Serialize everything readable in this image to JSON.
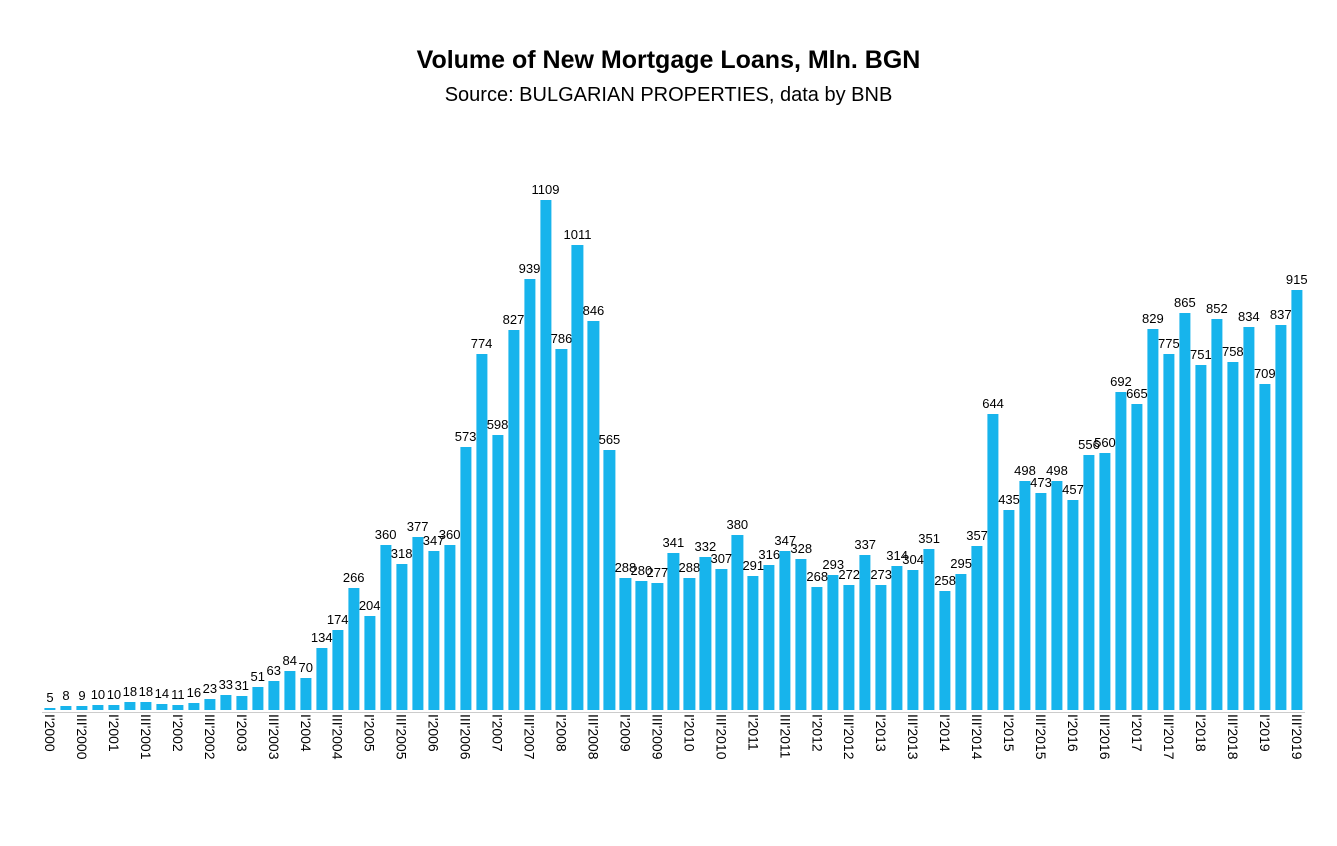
{
  "header": {
    "title": "Volume of New Mortgage Loans, Mln. BGN",
    "subtitle": "Source: BULGARIAN PROPERTIES, data by BNB"
  },
  "chart_data": {
    "type": "bar",
    "title": "Volume of New Mortgage Loans, Mln. BGN",
    "subtitle": "Source: BULGARIAN PROPERTIES, data by BNB",
    "xlabel": "",
    "ylabel": "",
    "ylim": [
      0,
      1110
    ],
    "grid": false,
    "legend": "none",
    "bar_color": "#17b4ec",
    "value_label_color": "#000000",
    "categories": [
      "I'2000",
      "II'2000",
      "III'2000",
      "IV'2000",
      "I'2001",
      "II'2001",
      "III'2001",
      "IV'2001",
      "I'2002",
      "II'2002",
      "III'2002",
      "IV'2002",
      "I'2003",
      "II'2003",
      "III'2003",
      "IV'2003",
      "I'2004",
      "II'2004",
      "III'2004",
      "IV'2004",
      "I'2005",
      "II'2005",
      "III'2005",
      "IV'2005",
      "I'2006",
      "II'2006",
      "III'2006",
      "IV'2006",
      "I'2007",
      "II'2007",
      "III'2007",
      "IV'2007",
      "I'2008",
      "II'2008",
      "III'2008",
      "IV'2008",
      "I'2009",
      "II'2009",
      "III'2009",
      "IV'2009",
      "I'2010",
      "II'2010",
      "III'2010",
      "IV'2010",
      "I'2011",
      "II'2011",
      "III'2011",
      "IV'2011",
      "I'2012",
      "II'2012",
      "III'2012",
      "IV'2012",
      "I'2013",
      "II'2013",
      "III'2013",
      "IV'2013",
      "I'2014",
      "II'2014",
      "III'2014",
      "IV'2014",
      "I'2015",
      "II'2015",
      "III'2015",
      "IV'2015",
      "I'2016",
      "II'2016",
      "III'2016",
      "IV'2016",
      "I'2017",
      "II'2017",
      "III'2017",
      "IV'2017",
      "I'2018",
      "II'2018",
      "III'2018",
      "IV'2018",
      "I'2019",
      "II'2019",
      "III'2019"
    ],
    "x_tick_labels": [
      "I'2000",
      "III'2000",
      "I'2001",
      "III'2001",
      "I'2002",
      "III'2002",
      "I'2003",
      "III'2003",
      "I'2004",
      "III'2004",
      "I'2005",
      "III'2005",
      "I'2006",
      "III'2006",
      "I'2007",
      "III'2007",
      "I'2008",
      "III'2008",
      "I'2009",
      "III'2009",
      "I'2010",
      "III'2010",
      "I'2011",
      "III'2011",
      "I'2012",
      "III'2012",
      "I'2013",
      "III'2013",
      "I'2014",
      "III'2014",
      "I'2015",
      "III'2015",
      "I'2016",
      "III'2016",
      "I'2017",
      "III'2017",
      "I'2018",
      "III'2018",
      "I'2019",
      "III'2019"
    ],
    "values": [
      5,
      8,
      9,
      10,
      10,
      18,
      18,
      14,
      11,
      16,
      23,
      33,
      31,
      51,
      63,
      84,
      70,
      134,
      174,
      266,
      204,
      360,
      318,
      377,
      347,
      360,
      573,
      774,
      598,
      827,
      939,
      1109,
      786,
      1011,
      846,
      565,
      288,
      280,
      277,
      341,
      288,
      332,
      307,
      380,
      291,
      316,
      347,
      328,
      268,
      293,
      272,
      337,
      273,
      314,
      304,
      351,
      258,
      295,
      357,
      644,
      435,
      498,
      473,
      498,
      457,
      556,
      560,
      692,
      665,
      829,
      775,
      865,
      751,
      852,
      758,
      834,
      709,
      837,
      915
    ]
  }
}
